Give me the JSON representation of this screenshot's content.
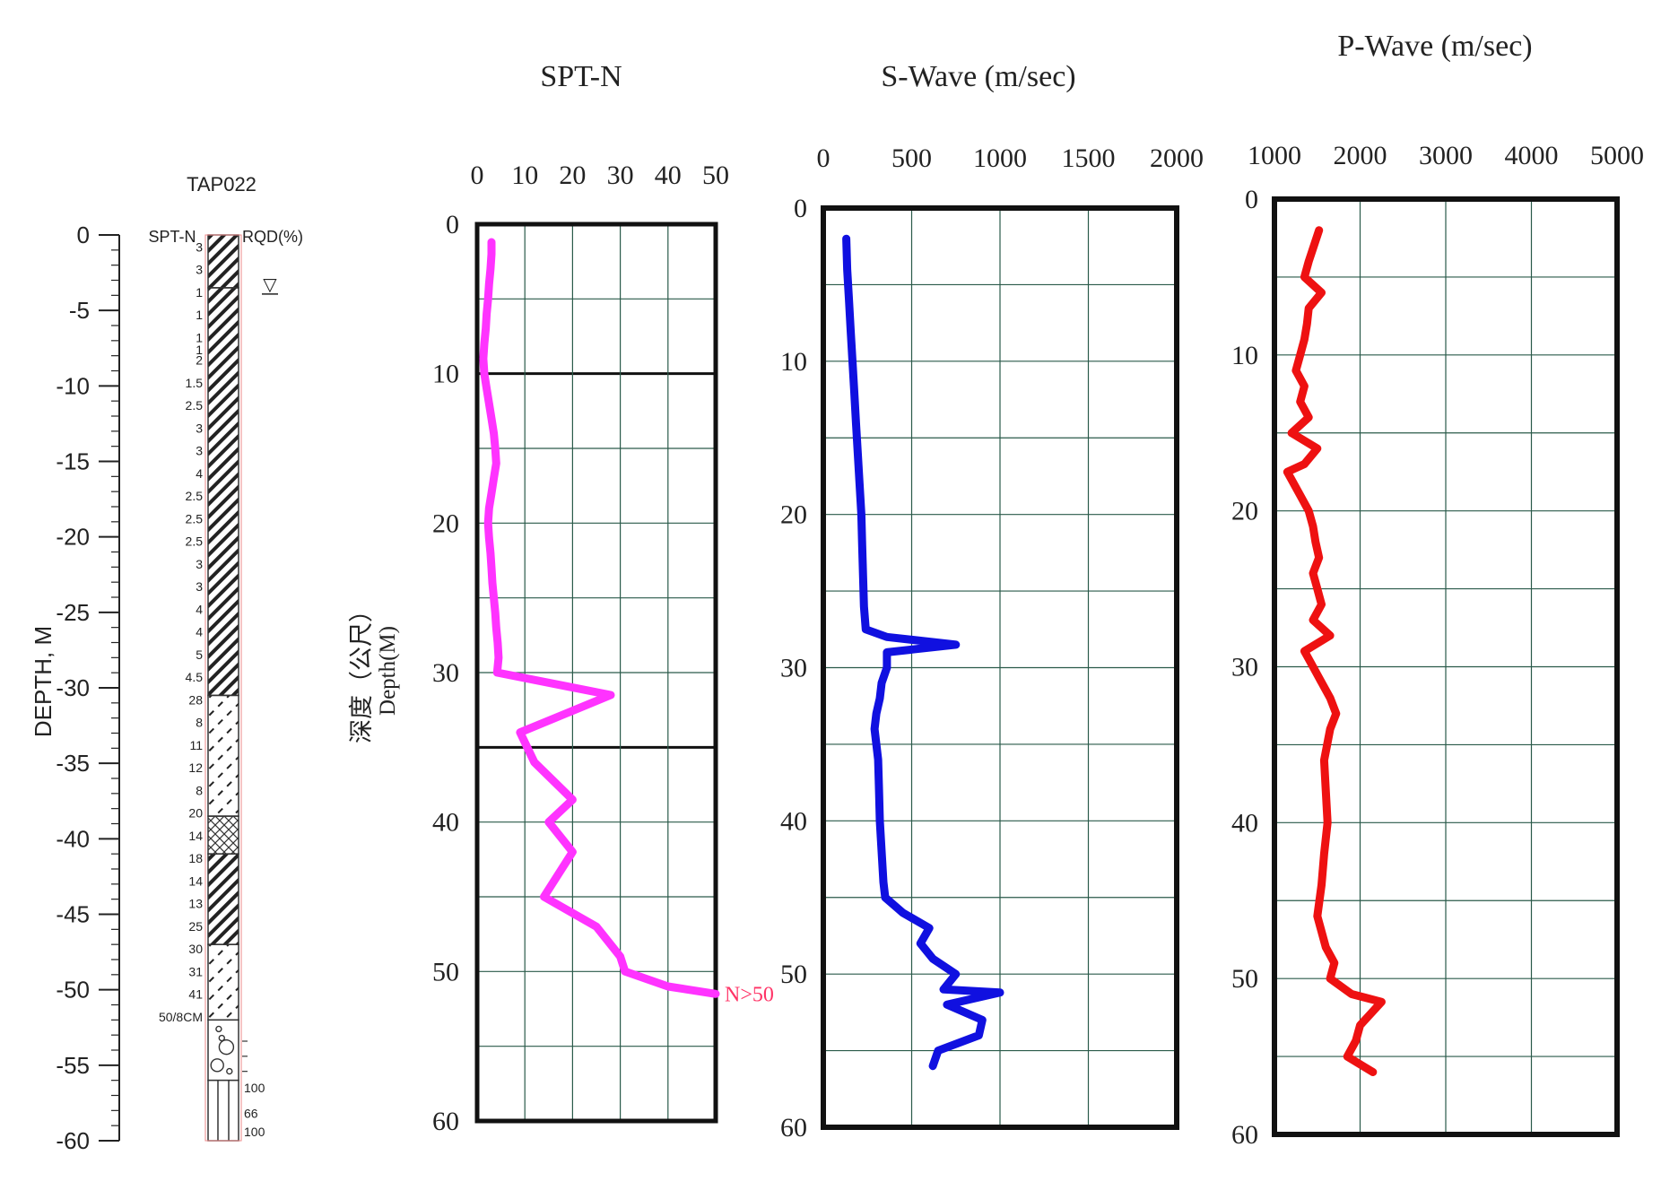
{
  "borehole_log": {
    "title": "TAP022",
    "spt_header": "SPT-N",
    "rqd_header": "RQD(%)",
    "depth_axis_label": "DEPTH, M",
    "depth_ticks": [
      "0",
      "-5",
      "-10",
      "-15",
      "-20",
      "-25",
      "-30",
      "-35",
      "-40",
      "-45",
      "-50",
      "-55",
      "-60"
    ],
    "depth_tick_values": [
      0,
      -5,
      -10,
      -15,
      -20,
      -25,
      -30,
      -35,
      -40,
      -45,
      -50,
      -55,
      -60
    ],
    "water_table_symbol": "▽",
    "water_table_depth": 3.2,
    "spt_readings": [
      {
        "depth": 0.8,
        "label": "3"
      },
      {
        "depth": 2.3,
        "label": "3"
      },
      {
        "depth": 3.8,
        "label": "1"
      },
      {
        "depth": 5.3,
        "label": "1"
      },
      {
        "depth": 6.8,
        "label": "1"
      },
      {
        "depth": 7.6,
        "label": "1"
      },
      {
        "depth": 8.3,
        "label": "2"
      },
      {
        "depth": 9.8,
        "label": "1.5"
      },
      {
        "depth": 11.3,
        "label": "2.5"
      },
      {
        "depth": 12.8,
        "label": "3"
      },
      {
        "depth": 14.3,
        "label": "3"
      },
      {
        "depth": 15.8,
        "label": "4"
      },
      {
        "depth": 17.3,
        "label": "2.5"
      },
      {
        "depth": 18.8,
        "label": "2.5"
      },
      {
        "depth": 20.3,
        "label": "2.5"
      },
      {
        "depth": 21.8,
        "label": "3"
      },
      {
        "depth": 23.3,
        "label": "3"
      },
      {
        "depth": 24.8,
        "label": "4"
      },
      {
        "depth": 26.3,
        "label": "4"
      },
      {
        "depth": 27.8,
        "label": "5"
      },
      {
        "depth": 29.3,
        "label": "4.5"
      },
      {
        "depth": 30.8,
        "label": "28"
      },
      {
        "depth": 32.3,
        "label": "8"
      },
      {
        "depth": 33.8,
        "label": "11"
      },
      {
        "depth": 35.3,
        "label": "12"
      },
      {
        "depth": 36.8,
        "label": "8"
      },
      {
        "depth": 38.3,
        "label": "20"
      },
      {
        "depth": 39.8,
        "label": "14"
      },
      {
        "depth": 41.3,
        "label": "18"
      },
      {
        "depth": 42.8,
        "label": "14"
      },
      {
        "depth": 44.3,
        "label": "13"
      },
      {
        "depth": 45.8,
        "label": "25"
      },
      {
        "depth": 47.3,
        "label": "30"
      },
      {
        "depth": 48.8,
        "label": "31"
      },
      {
        "depth": 50.3,
        "label": "41"
      },
      {
        "depth": 51.8,
        "label": "50/8CM"
      }
    ],
    "rqd_readings": [
      {
        "depth": 56.5,
        "label": "100"
      },
      {
        "depth": 58.2,
        "label": "66"
      },
      {
        "depth": 59.4,
        "label": "100"
      }
    ],
    "layers": [
      {
        "top": 0,
        "bottom": 3.5,
        "pattern": "dense-hatch"
      },
      {
        "top": 3.5,
        "bottom": 30.5,
        "pattern": "dense-hatch"
      },
      {
        "top": 30.5,
        "bottom": 38.5,
        "pattern": "sparse-hatch"
      },
      {
        "top": 38.5,
        "bottom": 41,
        "pattern": "cross"
      },
      {
        "top": 41,
        "bottom": 47,
        "pattern": "dense-hatch"
      },
      {
        "top": 47,
        "bottom": 52,
        "pattern": "sparse-hatch"
      },
      {
        "top": 52,
        "bottom": 56,
        "pattern": "gravel"
      },
      {
        "top": 56,
        "bottom": 60,
        "pattern": "rock"
      }
    ]
  },
  "shared_depth_label_zh": "深度（公尺）",
  "shared_depth_label_en": "Depth(M)",
  "chart_data": [
    {
      "type": "line",
      "title": "SPT-N",
      "xlabel": "",
      "ylabel": "深度（公尺） Depth(M)",
      "xlim": [
        0,
        50
      ],
      "ylim": [
        0,
        60
      ],
      "x_ticks": [
        "0",
        "10",
        "20",
        "30",
        "40",
        "50"
      ],
      "x_tick_values": [
        0,
        10,
        20,
        30,
        40,
        50
      ],
      "y_ticks": [
        "0",
        "10",
        "20",
        "30",
        "40",
        "50",
        "60"
      ],
      "y_tick_values": [
        0,
        10,
        20,
        30,
        40,
        50,
        60
      ],
      "grid": true,
      "heavy_gridlines_y": [
        10,
        35
      ],
      "color": "#ff33ff",
      "annotation": "N>50",
      "annotation_depth": 51.5,
      "points": [
        [
          3,
          1.2
        ],
        [
          3,
          2
        ],
        [
          2.8,
          3
        ],
        [
          2.5,
          4
        ],
        [
          2.3,
          5
        ],
        [
          2,
          6
        ],
        [
          1.8,
          7
        ],
        [
          1.5,
          8
        ],
        [
          1.3,
          9
        ],
        [
          1.5,
          10
        ],
        [
          2,
          11
        ],
        [
          2.5,
          12
        ],
        [
          3,
          13
        ],
        [
          3.5,
          14
        ],
        [
          3.8,
          15
        ],
        [
          4,
          16
        ],
        [
          3.5,
          17
        ],
        [
          3,
          18
        ],
        [
          2.5,
          19
        ],
        [
          2.3,
          20
        ],
        [
          2.5,
          21
        ],
        [
          2.8,
          22
        ],
        [
          3,
          23
        ],
        [
          3.2,
          24
        ],
        [
          3.5,
          25
        ],
        [
          3.8,
          26
        ],
        [
          4,
          27
        ],
        [
          4.3,
          28
        ],
        [
          4.5,
          29
        ],
        [
          4.2,
          30
        ],
        [
          28,
          31.5
        ],
        [
          9,
          34
        ],
        [
          12,
          36
        ],
        [
          20,
          38.5
        ],
        [
          15,
          40
        ],
        [
          20,
          42
        ],
        [
          14,
          45
        ],
        [
          25,
          47
        ],
        [
          30,
          49
        ],
        [
          31,
          50
        ],
        [
          40,
          51
        ],
        [
          50,
          51.5
        ]
      ]
    },
    {
      "type": "line",
      "title": "S-Wave (m/sec)",
      "xlabel": "",
      "ylabel": "",
      "xlim": [
        0,
        2000
      ],
      "ylim": [
        0,
        60
      ],
      "x_ticks": [
        "0",
        "500",
        "1000",
        "1500",
        "2000"
      ],
      "x_tick_values": [
        0,
        500,
        1000,
        1500,
        2000
      ],
      "y_ticks": [
        "0",
        "10",
        "20",
        "30",
        "40",
        "50",
        "60"
      ],
      "y_tick_values": [
        0,
        10,
        20,
        30,
        40,
        50,
        60
      ],
      "grid": true,
      "color": "#1010e0",
      "points": [
        [
          130,
          2
        ],
        [
          135,
          4
        ],
        [
          145,
          6
        ],
        [
          155,
          8
        ],
        [
          165,
          10
        ],
        [
          175,
          12
        ],
        [
          185,
          14
        ],
        [
          195,
          16
        ],
        [
          205,
          18
        ],
        [
          215,
          20
        ],
        [
          220,
          22
        ],
        [
          225,
          24
        ],
        [
          230,
          26
        ],
        [
          240,
          27.5
        ],
        [
          360,
          28
        ],
        [
          750,
          28.5
        ],
        [
          360,
          29
        ],
        [
          360,
          30
        ],
        [
          330,
          31
        ],
        [
          320,
          32
        ],
        [
          300,
          33
        ],
        [
          290,
          34
        ],
        [
          300,
          35
        ],
        [
          310,
          36
        ],
        [
          315,
          38
        ],
        [
          320,
          40
        ],
        [
          330,
          42
        ],
        [
          340,
          44
        ],
        [
          350,
          45
        ],
        [
          450,
          46
        ],
        [
          600,
          47
        ],
        [
          550,
          48
        ],
        [
          620,
          49
        ],
        [
          750,
          50
        ],
        [
          680,
          51
        ],
        [
          1000,
          51.2
        ],
        [
          700,
          52
        ],
        [
          900,
          53
        ],
        [
          880,
          54
        ],
        [
          650,
          55
        ],
        [
          620,
          56
        ]
      ]
    },
    {
      "type": "line",
      "title": "P-Wave (m/sec)",
      "xlabel": "",
      "ylabel": "",
      "xlim": [
        1000,
        5000
      ],
      "ylim": [
        0,
        60
      ],
      "x_ticks": [
        "1000",
        "2000",
        "3000",
        "4000",
        "5000"
      ],
      "x_tick_values": [
        1000,
        2000,
        3000,
        4000,
        5000
      ],
      "y_ticks": [
        "0",
        "10",
        "20",
        "30",
        "40",
        "50",
        "60"
      ],
      "y_tick_values": [
        0,
        10,
        20,
        30,
        40,
        50,
        60
      ],
      "grid": true,
      "color": "#ee1111",
      "points": [
        [
          1520,
          2
        ],
        [
          1400,
          4
        ],
        [
          1350,
          5
        ],
        [
          1550,
          6
        ],
        [
          1400,
          7
        ],
        [
          1380,
          8
        ],
        [
          1350,
          9
        ],
        [
          1300,
          10
        ],
        [
          1250,
          11
        ],
        [
          1350,
          12
        ],
        [
          1300,
          13
        ],
        [
          1400,
          14
        ],
        [
          1200,
          15
        ],
        [
          1500,
          16
        ],
        [
          1350,
          17
        ],
        [
          1150,
          17.5
        ],
        [
          1300,
          19
        ],
        [
          1400,
          20
        ],
        [
          1450,
          21
        ],
        [
          1480,
          22
        ],
        [
          1520,
          23
        ],
        [
          1450,
          24
        ],
        [
          1500,
          25
        ],
        [
          1550,
          26
        ],
        [
          1450,
          27
        ],
        [
          1650,
          28
        ],
        [
          1350,
          29
        ],
        [
          1450,
          30
        ],
        [
          1550,
          31
        ],
        [
          1650,
          32
        ],
        [
          1720,
          33
        ],
        [
          1650,
          34
        ],
        [
          1580,
          36
        ],
        [
          1600,
          38
        ],
        [
          1620,
          40
        ],
        [
          1580,
          42
        ],
        [
          1550,
          44
        ],
        [
          1500,
          46
        ],
        [
          1600,
          48
        ],
        [
          1700,
          49
        ],
        [
          1650,
          50
        ],
        [
          1900,
          51
        ],
        [
          2250,
          51.5
        ],
        [
          2000,
          53
        ],
        [
          1950,
          54
        ],
        [
          1850,
          55
        ],
        [
          2150,
          56
        ]
      ]
    }
  ]
}
